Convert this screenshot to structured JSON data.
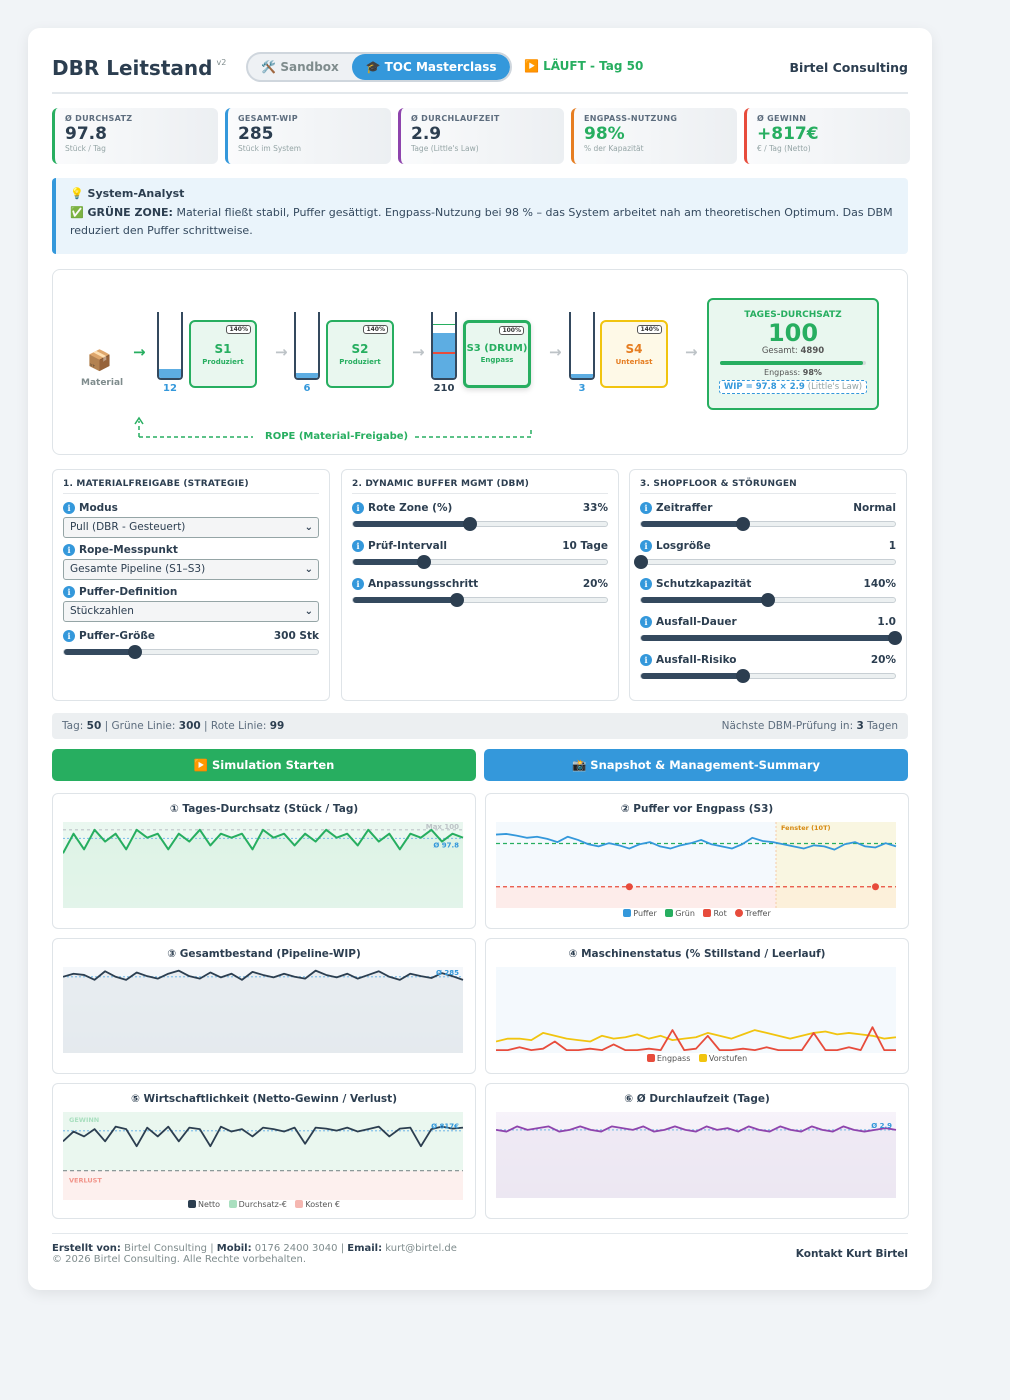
{
  "header": {
    "title": "DBR Leitstand",
    "version": "v2",
    "mode_sandbox": "🛠️ Sandbox",
    "mode_masterclass": "🎓 TOC Masterclass",
    "status": "▶️ LÄUFT - Tag 50",
    "brand": "Birtel Consulting"
  },
  "kpis": [
    {
      "label": "Ø DURCHSATZ",
      "value": "97.8",
      "sub": "Stück / Tag",
      "color": "#27ae60",
      "value_color": "#2c3e50"
    },
    {
      "label": "GESAMT-WIP",
      "value": "285",
      "sub": "Stück im System",
      "color": "#3498db",
      "value_color": "#2c3e50"
    },
    {
      "label": "Ø DURCHLAUFZEIT",
      "value": "2.9",
      "sub": "Tage (Little's Law)",
      "color": "#8e44ad",
      "value_color": "#2c3e50"
    },
    {
      "label": "ENGPASS-NUTZUNG",
      "value": "98%",
      "sub": "% der Kapazität",
      "color": "#e67e22",
      "value_color": "#27ae60"
    },
    {
      "label": "Ø GEWINN",
      "value": "+817€",
      "sub": "€ / Tag (Netto)",
      "color": "#e74c3c",
      "value_color": "#27ae60"
    }
  ],
  "analyst": {
    "title": "💡 System-Analyst",
    "zone": "✅ GRÜNE ZONE:",
    "text": "Material fließt stabil, Puffer gesättigt. Engpass-Nutzung bei 98 % – das System arbeitet nah am theoretischen Optimum. Das DBM reduziert den Puffer schrittweise."
  },
  "flow": {
    "material_icon": "📦",
    "material_label": "Material",
    "buffers": [
      {
        "value": "12",
        "fill": 0.14
      },
      {
        "value": "6",
        "fill": 0.08
      },
      {
        "value": "210",
        "fill": 0.68
      },
      {
        "value": "3",
        "fill": 0.06
      }
    ],
    "stations": [
      {
        "name": "S1",
        "sub": "Produziert",
        "cap": "140%",
        "state": "ok"
      },
      {
        "name": "S2",
        "sub": "Produziert",
        "cap": "140%",
        "state": "ok"
      },
      {
        "name": "S3 (DRUM)",
        "sub": "Engpass",
        "cap": "100%",
        "state": "drum"
      },
      {
        "name": "S4",
        "sub": "Unterlast",
        "cap": "140%",
        "state": "warn"
      }
    ],
    "rope_label": "ROPE (Material-Freigabe)",
    "summary": {
      "label": "TAGES-DURCHSATZ",
      "value": "100",
      "total_label": "Gesamt:",
      "total_value": "4890",
      "engpass_label": "Engpass:",
      "engpass_value": "98%",
      "engpass_fill": 0.98,
      "wip_formula": "WIP = 97.8 × 2.9",
      "wip_note": "(Little's Law)"
    }
  },
  "panels": {
    "release": {
      "title": "1. MATERIALFREIGABE (STRATEGIE)",
      "mode_label": "Modus",
      "mode_value": "Pull (DBR - Gesteuert)",
      "rope_label": "Rope-Messpunkt",
      "rope_value": "Gesamte Pipeline (S1–S3)",
      "buffer_def_label": "Puffer-Definition",
      "buffer_def_value": "Stückzahlen",
      "buffer_size_label": "Puffer-Größe",
      "buffer_size_value": "300 Stk",
      "buffer_size_pos": 0.28
    },
    "dbm": {
      "title": "2. DYNAMIC BUFFER MGMT (DBM)",
      "sliders": [
        {
          "label": "Rote Zone (%)",
          "value": "33%",
          "pos": 0.46
        },
        {
          "label": "Prüf-Intervall",
          "value": "10 Tage",
          "pos": 0.28
        },
        {
          "label": "Anpassungsschritt",
          "value": "20%",
          "pos": 0.41
        }
      ]
    },
    "shopfloor": {
      "title": "3. SHOPFLOOR & STÖRUNGEN",
      "sliders": [
        {
          "label": "Zeitraffer",
          "value": "Normal",
          "pos": 0.4
        },
        {
          "label": "Losgröße",
          "value": "1",
          "pos": 0.0
        },
        {
          "label": "Schutzkapazität",
          "value": "140%",
          "pos": 0.5
        },
        {
          "label": "Ausfall-Dauer",
          "value": "1.0",
          "pos": 1.0
        },
        {
          "label": "Ausfall-Risiko",
          "value": "20%",
          "pos": 0.4
        }
      ]
    }
  },
  "infobar": {
    "tag_label": "Tag:",
    "tag": "50",
    "green_label": "Grüne Linie:",
    "green": "300",
    "red_label": "Rote Linie:",
    "red": "99",
    "next_label": "Nächste DBM-Prüfung in:",
    "next": "3",
    "next_unit": "Tagen"
  },
  "buttons": {
    "start": "▶️ Simulation Starten",
    "snapshot": "📸 Snapshot & Management-Summary"
  },
  "colors": {
    "green": "#27ae60",
    "blue": "#3498db",
    "red": "#e74c3c",
    "yellow": "#f1c40f",
    "dark": "#2c3e50",
    "purple": "#8e44ad"
  },
  "charts": {
    "throughput": {
      "title": "① Tages-Durchsatz (Stück / Tag)",
      "max_label": "Max 100",
      "avg_label": "Ø 97.8",
      "ylim": [
        80,
        102
      ],
      "values": [
        94,
        99,
        95,
        100,
        97,
        99,
        95,
        100,
        98,
        99,
        95,
        99,
        97,
        100,
        96,
        99,
        98,
        99,
        95,
        100,
        98,
        99,
        96,
        99,
        97,
        100,
        98,
        99,
        96,
        100,
        97,
        99,
        95,
        99,
        98,
        100,
        97,
        99,
        98
      ]
    },
    "buffer": {
      "title": "② Puffer vor Engpass (S3)",
      "window_label": "Fenster (10T)",
      "green_line": 300,
      "red_line": 99,
      "ylim": [
        0,
        400
      ],
      "values": [
        295,
        298,
        290,
        280,
        285,
        275,
        260,
        285,
        270,
        250,
        240,
        255,
        245,
        230,
        250,
        260,
        240,
        230,
        245,
        255,
        270,
        250,
        240,
        230,
        250,
        280,
        265,
        260,
        250,
        240,
        230,
        245,
        240,
        225,
        250,
        260,
        240,
        235,
        255,
        240
      ],
      "hits_index": [
        13,
        37
      ],
      "legend": [
        "Puffer",
        "Grün",
        "Rot",
        "Treffer"
      ]
    },
    "wip": {
      "title": "③ Gesamtbestand (Pipeline-WIP)",
      "avg_label": "Ø 285",
      "ylim": [
        200,
        340
      ],
      "values": [
        285,
        290,
        288,
        280,
        294,
        285,
        280,
        292,
        286,
        282,
        290,
        295,
        286,
        282,
        292,
        284,
        290,
        280,
        293,
        288,
        284,
        290,
        285,
        282,
        295,
        288,
        284,
        290,
        282,
        288,
        294,
        285,
        280,
        290,
        286,
        283,
        291,
        286,
        280
      ]
    },
    "machines": {
      "title": "④ Maschinenstatus (% Stillstand / Leerlauf)",
      "ylim": [
        0,
        60
      ],
      "engpass": [
        2,
        2,
        4,
        2,
        3,
        8,
        2,
        2,
        3,
        2,
        6,
        2,
        2,
        3,
        2,
        16,
        2,
        3,
        12,
        2,
        2,
        3,
        2,
        4,
        2,
        2,
        2,
        14,
        2,
        2,
        4,
        2,
        18,
        2,
        2
      ],
      "vorstufen": [
        8,
        10,
        10,
        9,
        14,
        12,
        10,
        9,
        8,
        12,
        10,
        11,
        13,
        10,
        12,
        9,
        10,
        11,
        14,
        12,
        10,
        13,
        16,
        14,
        12,
        10,
        12,
        14,
        15,
        13,
        14,
        13,
        12,
        10,
        11
      ],
      "legend": [
        "Engpass",
        "Vorstufen"
      ]
    },
    "profit": {
      "title": "⑤ Wirtschaftlichkeit (Netto-Gewinn / Verlust)",
      "gain_label": "GEWINN",
      "loss_label": "VERLUST",
      "avg_label": "Ø 817€",
      "ylim": [
        -600,
        1200
      ],
      "values": [
        600,
        800,
        700,
        850,
        600,
        900,
        850,
        500,
        880,
        700,
        900,
        600,
        880,
        850,
        500,
        900,
        800,
        850,
        700,
        880,
        850,
        800,
        880,
        550,
        880,
        860,
        820,
        880,
        800,
        850,
        900,
        700,
        860,
        880,
        500,
        850,
        900,
        860,
        880
      ],
      "legend": [
        "Netto",
        "Durchsatz-€",
        "Kosten €"
      ]
    },
    "leadtime": {
      "title": "⑥ Ø Durchlaufzeit (Tage)",
      "avg_label": "Ø 2.9",
      "ylim": [
        1.5,
        4.0
      ],
      "values": [
        2.9,
        2.85,
        3.0,
        2.9,
        2.95,
        3.0,
        2.85,
        2.9,
        3.0,
        2.9,
        2.85,
        3.0,
        2.95,
        2.9,
        3.0,
        2.85,
        2.9,
        3.0,
        2.9,
        2.85,
        3.0,
        2.9,
        2.95,
        2.85,
        3.0,
        2.9,
        2.85,
        3.0,
        2.9,
        2.85,
        3.0,
        2.9,
        2.85,
        3.0,
        2.9,
        2.85,
        2.9,
        2.95,
        2.9
      ]
    }
  },
  "footer": {
    "created_label": "Erstellt von:",
    "created": "Birtel Consulting",
    "mobile_label": "Mobil:",
    "mobile": "0176 2400 3040",
    "email_label": "Email:",
    "email": "kurt@birtel.de",
    "copyright": "© 2026 Birtel Consulting. Alle Rechte vorbehalten.",
    "contact": "Kontakt Kurt Birtel"
  }
}
